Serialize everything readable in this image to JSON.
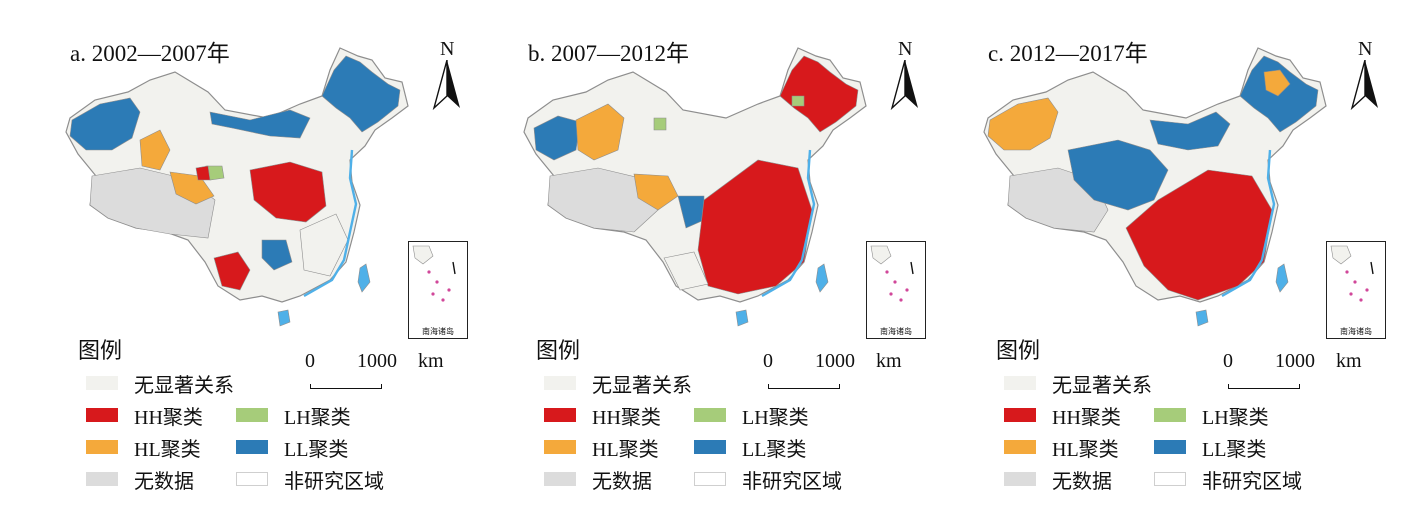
{
  "colors": {
    "none": "#f2f2ee",
    "hh": "#d7191c",
    "lh": "#a6cc7a",
    "hl": "#f4a93b",
    "ll": "#2c7bb6",
    "nodata": "#dcdcdc",
    "outside": "#ffffff",
    "boundary": "#8e8e8e",
    "sea": "#4fb0e8"
  },
  "panels": [
    {
      "title": "a. 2002—2007年",
      "dominant": "ll",
      "inset_label": "南海诸岛",
      "legend": {
        "title": "图例",
        "items": [
          {
            "key": "none",
            "label": "无显著关系"
          },
          {
            "key": "hh",
            "label": "HH聚类"
          },
          {
            "key": "lh",
            "label": "LH聚类"
          },
          {
            "key": "hl",
            "label": "HL聚类"
          },
          {
            "key": "ll",
            "label": "LL聚类"
          },
          {
            "key": "nodata",
            "label": "无数据"
          },
          {
            "key": "outside",
            "label": "非研究区域"
          }
        ]
      },
      "scale": {
        "zero": "0",
        "value": "1000",
        "unit": "km"
      },
      "north": "N"
    },
    {
      "title": "b. 2007—2012年",
      "dominant": "hh",
      "inset_label": "南海诸岛",
      "legend": {
        "title": "图例",
        "items": [
          {
            "key": "none",
            "label": "无显著关系"
          },
          {
            "key": "hh",
            "label": "HH聚类"
          },
          {
            "key": "lh",
            "label": "LH聚类"
          },
          {
            "key": "hl",
            "label": "HL聚类"
          },
          {
            "key": "ll",
            "label": "LL聚类"
          },
          {
            "key": "nodata",
            "label": "无数据"
          },
          {
            "key": "outside",
            "label": "非研究区域"
          }
        ]
      },
      "scale": {
        "zero": "0",
        "value": "1000",
        "unit": "km"
      },
      "north": "N"
    },
    {
      "title": "c. 2012—2017年",
      "dominant": "hh",
      "inset_label": "南海诸岛",
      "legend": {
        "title": "图例",
        "items": [
          {
            "key": "none",
            "label": "无显著关系"
          },
          {
            "key": "hh",
            "label": "HH聚类"
          },
          {
            "key": "lh",
            "label": "LH聚类"
          },
          {
            "key": "hl",
            "label": "HL聚类"
          },
          {
            "key": "ll",
            "label": "LL聚类"
          },
          {
            "key": "nodata",
            "label": "无数据"
          },
          {
            "key": "outside",
            "label": "非研究区域"
          }
        ]
      },
      "scale": {
        "zero": "0",
        "value": "1000",
        "unit": "km"
      },
      "north": "N"
    }
  ]
}
